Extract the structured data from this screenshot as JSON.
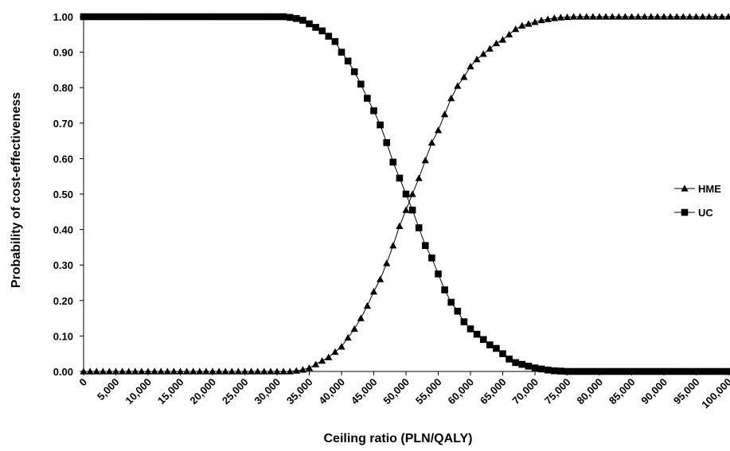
{
  "chart_data": {
    "type": "line",
    "title": "",
    "xlabel": "Ceiling ratio (PLN/QALY)",
    "ylabel": "Probability of cost-effectiveness",
    "xlim": [
      0,
      100000
    ],
    "ylim": [
      0,
      1
    ],
    "x_ticks": [
      0,
      5000,
      10000,
      15000,
      20000,
      25000,
      30000,
      35000,
      40000,
      45000,
      50000,
      55000,
      60000,
      65000,
      70000,
      75000,
      80000,
      85000,
      90000,
      95000,
      100000
    ],
    "x_tick_labels": [
      "0",
      "5,000",
      "10,000",
      "15,000",
      "20,000",
      "25,000",
      "30,000",
      "35,000",
      "40,000",
      "45,000",
      "50,000",
      "55,000",
      "60,000",
      "65,000",
      "70,000",
      "75,000",
      "80,000",
      "85,000",
      "90,000",
      "95,000",
      "100,000"
    ],
    "y_ticks": [
      0,
      0.1,
      0.2,
      0.3,
      0.4,
      0.5,
      0.6,
      0.7,
      0.8,
      0.9,
      1.0
    ],
    "y_tick_labels": [
      "0.00",
      "0.10",
      "0.20",
      "0.30",
      "0.40",
      "0.50",
      "0.60",
      "0.70",
      "0.80",
      "0.90",
      "1.00"
    ],
    "grid": false,
    "legend": "right",
    "x": [
      0,
      1000,
      2000,
      3000,
      4000,
      5000,
      6000,
      7000,
      8000,
      9000,
      10000,
      11000,
      12000,
      13000,
      14000,
      15000,
      16000,
      17000,
      18000,
      19000,
      20000,
      21000,
      22000,
      23000,
      24000,
      25000,
      26000,
      27000,
      28000,
      29000,
      30000,
      31000,
      32000,
      33000,
      34000,
      35000,
      36000,
      37000,
      38000,
      39000,
      40000,
      41000,
      42000,
      43000,
      44000,
      45000,
      46000,
      47000,
      48000,
      49000,
      50000,
      51000,
      52000,
      53000,
      54000,
      55000,
      56000,
      57000,
      58000,
      59000,
      60000,
      61000,
      62000,
      63000,
      64000,
      65000,
      66000,
      67000,
      68000,
      69000,
      70000,
      71000,
      72000,
      73000,
      74000,
      75000,
      76000,
      77000,
      78000,
      79000,
      80000,
      81000,
      82000,
      83000,
      84000,
      85000,
      86000,
      87000,
      88000,
      89000,
      90000,
      91000,
      92000,
      93000,
      94000,
      95000,
      96000,
      97000,
      98000,
      99000,
      100000
    ],
    "series": [
      {
        "name": "HME",
        "marker": "triangle",
        "color": "#000000",
        "values": [
          0,
          0,
          0,
          0,
          0,
          0,
          0,
          0,
          0,
          0,
          0,
          0,
          0,
          0,
          0,
          0,
          0,
          0,
          0,
          0,
          0,
          0,
          0,
          0,
          0,
          0,
          0,
          0,
          0,
          0,
          0,
          0,
          0,
          0.002,
          0.005,
          0.01,
          0.02,
          0.03,
          0.04,
          0.055,
          0.07,
          0.095,
          0.12,
          0.15,
          0.185,
          0.225,
          0.26,
          0.305,
          0.355,
          0.41,
          0.455,
          0.5,
          0.545,
          0.595,
          0.645,
          0.68,
          0.725,
          0.77,
          0.805,
          0.83,
          0.86,
          0.88,
          0.895,
          0.91,
          0.925,
          0.935,
          0.95,
          0.965,
          0.975,
          0.98,
          0.985,
          0.99,
          0.993,
          0.996,
          0.998,
          0.999,
          1,
          1,
          1,
          1,
          1,
          1,
          1,
          1,
          1,
          1,
          1,
          1,
          1,
          1,
          1,
          1,
          1,
          1,
          1,
          1,
          1,
          1,
          1,
          1,
          1
        ]
      },
      {
        "name": "UC",
        "marker": "square",
        "color": "#000000",
        "values": [
          1,
          1,
          1,
          1,
          1,
          1,
          1,
          1,
          1,
          1,
          1,
          1,
          1,
          1,
          1,
          1,
          1,
          1,
          1,
          1,
          1,
          1,
          1,
          1,
          1,
          1,
          1,
          1,
          1,
          1,
          1,
          1,
          0.998,
          0.995,
          0.99,
          0.98,
          0.97,
          0.96,
          0.945,
          0.93,
          0.9,
          0.875,
          0.845,
          0.81,
          0.77,
          0.735,
          0.695,
          0.645,
          0.59,
          0.545,
          0.5,
          0.455,
          0.405,
          0.355,
          0.32,
          0.275,
          0.23,
          0.195,
          0.17,
          0.14,
          0.12,
          0.105,
          0.09,
          0.075,
          0.065,
          0.05,
          0.035,
          0.025,
          0.02,
          0.015,
          0.01,
          0.007,
          0.004,
          0.002,
          0.001,
          0,
          0,
          0,
          0,
          0,
          0,
          0,
          0,
          0,
          0,
          0,
          0,
          0,
          0,
          0,
          0,
          0,
          0,
          0,
          0,
          0,
          0,
          0,
          0,
          0,
          0
        ]
      }
    ]
  }
}
